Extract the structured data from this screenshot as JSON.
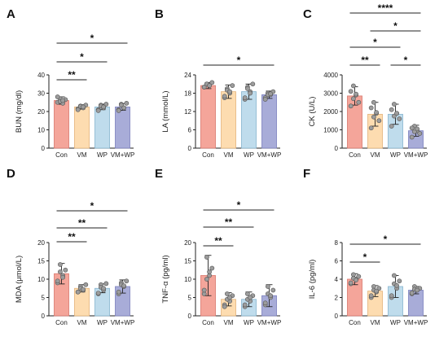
{
  "chart_data": [
    {
      "panel": "A",
      "type": "bar",
      "ylabel": "BUN (mg/dl)",
      "categories": [
        "Con",
        "VM",
        "WP",
        "VM+WP"
      ],
      "yticks": [
        0,
        10,
        20,
        30,
        40
      ],
      "ylim": [
        0,
        40
      ],
      "values": [
        26,
        22.5,
        22.5,
        22.5
      ],
      "errors": [
        2,
        1.2,
        1.5,
        1.8
      ],
      "points": [
        [
          25,
          27,
          24.5,
          26.5,
          28,
          25.5,
          26
        ],
        [
          21.5,
          23,
          22,
          23.5,
          21,
          22.8,
          22.5
        ],
        [
          21,
          23.5,
          22,
          24,
          20.5,
          23,
          22.5
        ],
        [
          21,
          24,
          22,
          24.5,
          20.5,
          23.5,
          22
        ]
      ],
      "significance": [
        {
          "from": 0,
          "to": 1,
          "label": "**"
        },
        {
          "from": 0,
          "to": 2,
          "label": "*"
        },
        {
          "from": 0,
          "to": 3,
          "label": "*"
        }
      ]
    },
    {
      "panel": "B",
      "type": "bar",
      "ylabel": "LA (mmol/L)",
      "categories": [
        "Con",
        "VM",
        "WP",
        "VM+WP"
      ],
      "yticks": [
        0,
        6,
        12,
        18,
        24
      ],
      "ylim": [
        0,
        24
      ],
      "values": [
        20.5,
        18.5,
        18.5,
        17.5
      ],
      "errors": [
        1.0,
        2.2,
        2.5,
        1.2
      ],
      "points": [
        [
          20,
          21,
          20.5,
          21.5,
          20,
          21,
          20.5
        ],
        [
          16.5,
          19.5,
          18,
          20.5,
          17,
          19,
          18.5
        ],
        [
          16,
          20,
          18.5,
          21,
          16.5,
          19.5,
          18
        ],
        [
          16.5,
          18,
          17.5,
          18.5,
          16,
          17.5,
          17.8
        ]
      ],
      "significance": [
        {
          "from": 0,
          "to": 3,
          "label": "*"
        }
      ]
    },
    {
      "panel": "C",
      "type": "bar",
      "ylabel": "CK (U/L)",
      "categories": [
        "Con",
        "VM",
        "WP",
        "VM+WP"
      ],
      "yticks": [
        0,
        1000,
        2000,
        3000,
        4000
      ],
      "ylim": [
        0,
        4000
      ],
      "values": [
        2850,
        1850,
        1850,
        950
      ],
      "errors": [
        500,
        650,
        550,
        300
      ],
      "points": [
        [
          2300,
          3400,
          2900,
          2500,
          3100,
          2700,
          2950
        ],
        [
          1100,
          2500,
          1900,
          1500,
          2200,
          1700,
          1950
        ],
        [
          1200,
          2400,
          1900,
          1600,
          2100,
          1750,
          1900
        ],
        [
          600,
          1200,
          950,
          800,
          1100,
          900,
          1050
        ]
      ],
      "significance": [
        {
          "from": 0,
          "to": 1,
          "label": "**"
        },
        {
          "from": 2,
          "to": 3,
          "label": "*"
        },
        {
          "from": 0,
          "to": 2,
          "label": "*"
        },
        {
          "from": 1,
          "to": 3,
          "label": "*"
        },
        {
          "from": 0,
          "to": 3,
          "label": "****"
        }
      ]
    },
    {
      "panel": "D",
      "type": "bar",
      "ylabel": "MDA (μmol/L)",
      "categories": [
        "Con",
        "VM",
        "WP",
        "VM+WP"
      ],
      "yticks": [
        0,
        5,
        10,
        15,
        20
      ],
      "ylim": [
        0,
        20
      ],
      "values": [
        11.5,
        7.5,
        7.5,
        8.0
      ],
      "errors": [
        2.8,
        1.0,
        1.2,
        1.8
      ],
      "points": [
        [
          9,
          14,
          11,
          12.5,
          9.5,
          12,
          10.5
        ],
        [
          6.5,
          8,
          7,
          8.5,
          6.5,
          7.5,
          7.2
        ],
        [
          6,
          8.5,
          7,
          8.8,
          6.2,
          7.8,
          7.5
        ],
        [
          6,
          9,
          8,
          9.5,
          6.5,
          8.5,
          8.2
        ]
      ],
      "significance": [
        {
          "from": 0,
          "to": 1,
          "label": "**"
        },
        {
          "from": 0,
          "to": 2,
          "label": "**"
        },
        {
          "from": 0,
          "to": 3,
          "label": "*"
        }
      ]
    },
    {
      "panel": "E",
      "type": "bar",
      "ylabel": "TNF-α (pg/ml)",
      "categories": [
        "Con",
        "VM",
        "WP",
        "VM+WP"
      ],
      "yticks": [
        0,
        5,
        10,
        15,
        20
      ],
      "ylim": [
        0,
        20
      ],
      "values": [
        11,
        4.5,
        4.5,
        5.5
      ],
      "errors": [
        5.5,
        1.8,
        2.0,
        3.0
      ],
      "points": [
        [
          6,
          16,
          11,
          13,
          7,
          10,
          12
        ],
        [
          3,
          6,
          4,
          5.5,
          2.5,
          4.5,
          5
        ],
        [
          2.5,
          6,
          4,
          5.5,
          3,
          4.5,
          5
        ],
        [
          3,
          8,
          5,
          7,
          3.5,
          6,
          5.5
        ]
      ],
      "significance": [
        {
          "from": 0,
          "to": 1,
          "label": "**"
        },
        {
          "from": 0,
          "to": 2,
          "label": "**"
        },
        {
          "from": 0,
          "to": 3,
          "label": "*"
        }
      ]
    },
    {
      "panel": "F",
      "type": "bar",
      "ylabel": "IL-6 (pg/ml)",
      "categories": [
        "Con",
        "VM",
        "WP",
        "VM+WP"
      ],
      "yticks": [
        0,
        2,
        4,
        6,
        8
      ],
      "ylim": [
        0,
        8
      ],
      "values": [
        4.0,
        2.7,
        3.2,
        2.8
      ],
      "errors": [
        0.6,
        0.6,
        1.2,
        0.4
      ],
      "points": [
        [
          3.5,
          4.5,
          4,
          4.3,
          3.6,
          4.1,
          3.9
        ],
        [
          2,
          3.2,
          2.6,
          3,
          2.2,
          2.8,
          2.7
        ],
        [
          2,
          4.4,
          3,
          3.8,
          2.2,
          3.5,
          3.3
        ],
        [
          2.4,
          3.2,
          2.8,
          3,
          2.5,
          2.9,
          2.8
        ]
      ],
      "significance": [
        {
          "from": 0,
          "to": 1,
          "label": "*"
        },
        {
          "from": 0,
          "to": 3,
          "label": "*"
        }
      ]
    }
  ],
  "colors": {
    "bars": [
      "#f4a59a",
      "#fddcb0",
      "#bfdcec",
      "#a8acd8"
    ],
    "bar_edges": [
      "#d9776c",
      "#e4b37a",
      "#86b4cf",
      "#7b80bd"
    ],
    "points": "#9c9c9c",
    "axis": "#222222"
  }
}
